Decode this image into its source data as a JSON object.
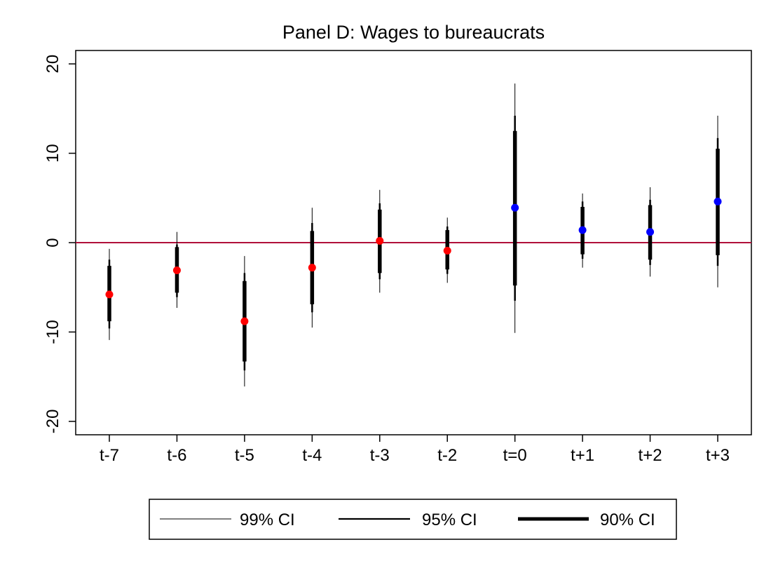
{
  "chart_data": {
    "type": "scatter",
    "title": "Panel D: Wages to bureaucrats",
    "xlabel": "",
    "ylabel": "",
    "categories": [
      "t-7",
      "t-6",
      "t-5",
      "t-4",
      "t-3",
      "t-2",
      "t=0",
      "t+1",
      "t+2",
      "t+3"
    ],
    "ylim": [
      -21.5,
      21.5
    ],
    "yticks": [
      -20,
      -10,
      0,
      10,
      20
    ],
    "ytick_labels": [
      "-20",
      "-10",
      "0",
      "10",
      "20"
    ],
    "reference_line": {
      "y": 0,
      "color": "#b0103a"
    },
    "point_colors": {
      "pre": "#ff0000",
      "post": "#0000ff"
    },
    "points": [
      {
        "x": "t-7",
        "estimate": -5.8,
        "ci90": [
          -8.8,
          -2.6
        ],
        "ci95": [
          -9.6,
          -1.9
        ],
        "ci99": [
          -10.9,
          -0.7
        ],
        "group": "pre"
      },
      {
        "x": "t-6",
        "estimate": -3.1,
        "ci90": [
          -5.6,
          -0.5
        ],
        "ci95": [
          -6.1,
          -0.2
        ],
        "ci99": [
          -7.3,
          1.2
        ],
        "group": "pre"
      },
      {
        "x": "t-5",
        "estimate": -8.8,
        "ci90": [
          -13.3,
          -4.3
        ],
        "ci95": [
          -14.3,
          -3.4
        ],
        "ci99": [
          -16.1,
          -1.5
        ],
        "group": "pre"
      },
      {
        "x": "t-4",
        "estimate": -2.8,
        "ci90": [
          -6.9,
          1.3
        ],
        "ci95": [
          -7.8,
          2.2
        ],
        "ci99": [
          -9.5,
          3.9
        ],
        "group": "pre"
      },
      {
        "x": "t-3",
        "estimate": 0.2,
        "ci90": [
          -3.4,
          3.7
        ],
        "ci95": [
          -4.1,
          4.4
        ],
        "ci99": [
          -5.6,
          5.9
        ],
        "group": "pre"
      },
      {
        "x": "t-2",
        "estimate": -0.9,
        "ci90": [
          -3.0,
          1.4
        ],
        "ci95": [
          -3.5,
          1.8
        ],
        "ci99": [
          -4.5,
          2.8
        ],
        "group": "pre"
      },
      {
        "x": "t=0",
        "estimate": 3.9,
        "ci90": [
          -4.8,
          12.5
        ],
        "ci95": [
          -6.5,
          14.2
        ],
        "ci99": [
          -10.1,
          17.8
        ],
        "group": "post"
      },
      {
        "x": "t+1",
        "estimate": 1.4,
        "ci90": [
          -1.3,
          4.0
        ],
        "ci95": [
          -1.8,
          4.6
        ],
        "ci99": [
          -2.8,
          5.5
        ],
        "group": "post"
      },
      {
        "x": "t+2",
        "estimate": 1.2,
        "ci90": [
          -1.9,
          4.2
        ],
        "ci95": [
          -2.5,
          4.8
        ],
        "ci99": [
          -3.8,
          6.2
        ],
        "group": "post"
      },
      {
        "x": "t+3",
        "estimate": 4.6,
        "ci90": [
          -1.4,
          10.5
        ],
        "ci95": [
          -2.6,
          11.7
        ],
        "ci99": [
          -5.0,
          14.2
        ],
        "group": "post"
      }
    ],
    "legend": {
      "placement": "bottom",
      "entries": [
        {
          "label": "99% CI",
          "interval": "ci99"
        },
        {
          "label": "95% CI",
          "interval": "ci95"
        },
        {
          "label": "90% CI",
          "interval": "ci90"
        }
      ]
    }
  }
}
